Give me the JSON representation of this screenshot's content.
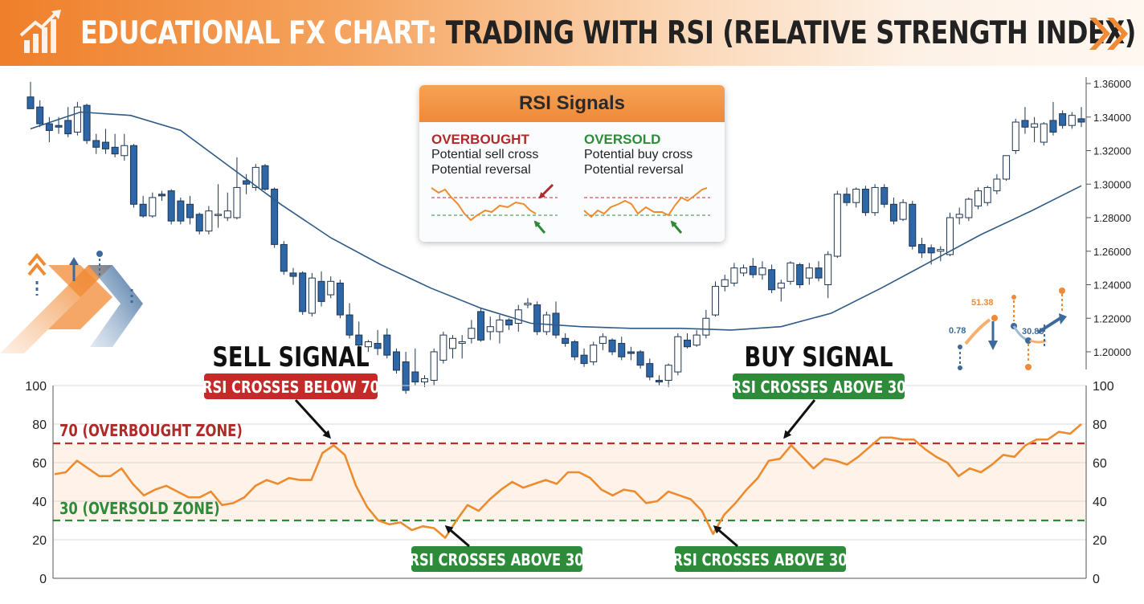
{
  "header": {
    "title_prefix": "EDUCATIONAL FX CHART:",
    "title_main": "TRADING WITH RSI (RELATIVE STRENGTH INDEX)"
  },
  "colors": {
    "up_candle": "#ffffff",
    "down_candle": "#2e67a8",
    "moving_average": "#2e5a86",
    "rsi_line": "#ec8c2e",
    "overbought": "#c42a2a",
    "oversold": "#2e8b3a",
    "accent": "#f08a34"
  },
  "signals_box": {
    "title": "RSI Signals",
    "overbought": {
      "heading": "OVERBOUGHT",
      "line1": "Potential sell cross",
      "line2": "Potential reversal"
    },
    "oversold": {
      "heading": "OVERSOLD",
      "line1": "Potential buy cross",
      "line2": "Potential reversal"
    }
  },
  "decor_numbers": [
    "0.78",
    "51.38",
    "30.85"
  ],
  "chart_data": [
    {
      "type": "candlestick",
      "title": "",
      "ylim": [
        1.19,
        1.365
      ],
      "y_ticks": [
        "1.36000",
        "1.34000",
        "1.32000",
        "1.30000",
        "1.28000",
        "1.26000",
        "1.24000",
        "1.22000",
        "1.20000"
      ],
      "candles": [
        {
          "o": 1.352,
          "h": 1.361,
          "l": 1.345,
          "c": 1.345
        },
        {
          "o": 1.346,
          "h": 1.35,
          "l": 1.334,
          "c": 1.336
        },
        {
          "o": 1.336,
          "h": 1.34,
          "l": 1.325,
          "c": 1.332
        },
        {
          "o": 1.335,
          "h": 1.34,
          "l": 1.33,
          "c": 1.334
        },
        {
          "o": 1.338,
          "h": 1.346,
          "l": 1.328,
          "c": 1.33
        },
        {
          "o": 1.331,
          "h": 1.349,
          "l": 1.329,
          "c": 1.346
        },
        {
          "o": 1.347,
          "h": 1.348,
          "l": 1.324,
          "c": 1.326
        },
        {
          "o": 1.326,
          "h": 1.33,
          "l": 1.318,
          "c": 1.322
        },
        {
          "o": 1.325,
          "h": 1.333,
          "l": 1.318,
          "c": 1.321
        },
        {
          "o": 1.322,
          "h": 1.33,
          "l": 1.316,
          "c": 1.318
        },
        {
          "o": 1.317,
          "h": 1.33,
          "l": 1.314,
          "c": 1.323
        },
        {
          "o": 1.323,
          "h": 1.324,
          "l": 1.286,
          "c": 1.288
        },
        {
          "o": 1.288,
          "h": 1.293,
          "l": 1.28,
          "c": 1.281
        },
        {
          "o": 1.281,
          "h": 1.295,
          "l": 1.28,
          "c": 1.292
        },
        {
          "o": 1.294,
          "h": 1.296,
          "l": 1.29,
          "c": 1.293
        },
        {
          "o": 1.296,
          "h": 1.297,
          "l": 1.276,
          "c": 1.278
        },
        {
          "o": 1.29,
          "h": 1.292,
          "l": 1.276,
          "c": 1.278
        },
        {
          "o": 1.288,
          "h": 1.293,
          "l": 1.276,
          "c": 1.28
        },
        {
          "o": 1.282,
          "h": 1.283,
          "l": 1.27,
          "c": 1.272
        },
        {
          "o": 1.272,
          "h": 1.287,
          "l": 1.27,
          "c": 1.284
        },
        {
          "o": 1.282,
          "h": 1.3,
          "l": 1.274,
          "c": 1.282
        },
        {
          "o": 1.28,
          "h": 1.295,
          "l": 1.278,
          "c": 1.284
        },
        {
          "o": 1.28,
          "h": 1.316,
          "l": 1.279,
          "c": 1.298
        },
        {
          "o": 1.302,
          "h": 1.306,
          "l": 1.294,
          "c": 1.3
        },
        {
          "o": 1.298,
          "h": 1.312,
          "l": 1.296,
          "c": 1.31
        },
        {
          "o": 1.311,
          "h": 1.312,
          "l": 1.296,
          "c": 1.297
        },
        {
          "o": 1.297,
          "h": 1.298,
          "l": 1.262,
          "c": 1.264
        },
        {
          "o": 1.264,
          "h": 1.266,
          "l": 1.246,
          "c": 1.248
        },
        {
          "o": 1.247,
          "h": 1.25,
          "l": 1.24,
          "c": 1.245
        },
        {
          "o": 1.247,
          "h": 1.248,
          "l": 1.222,
          "c": 1.224
        },
        {
          "o": 1.223,
          "h": 1.247,
          "l": 1.221,
          "c": 1.244
        },
        {
          "o": 1.242,
          "h": 1.248,
          "l": 1.227,
          "c": 1.23
        },
        {
          "o": 1.234,
          "h": 1.245,
          "l": 1.232,
          "c": 1.242
        },
        {
          "o": 1.241,
          "h": 1.243,
          "l": 1.22,
          "c": 1.222
        },
        {
          "o": 1.222,
          "h": 1.229,
          "l": 1.208,
          "c": 1.21
        },
        {
          "o": 1.21,
          "h": 1.218,
          "l": 1.202,
          "c": 1.204
        },
        {
          "o": 1.203,
          "h": 1.207,
          "l": 1.2,
          "c": 1.206
        },
        {
          "o": 1.205,
          "h": 1.213,
          "l": 1.198,
          "c": 1.202
        },
        {
          "o": 1.21,
          "h": 1.214,
          "l": 1.196,
          "c": 1.198
        },
        {
          "o": 1.2,
          "h": 1.202,
          "l": 1.187,
          "c": 1.189
        },
        {
          "o": 1.194,
          "h": 1.2,
          "l": 1.175,
          "c": 1.177
        },
        {
          "o": 1.188,
          "h": 1.202,
          "l": 1.18,
          "c": 1.182
        },
        {
          "o": 1.182,
          "h": 1.186,
          "l": 1.179,
          "c": 1.184
        },
        {
          "o": 1.183,
          "h": 1.202,
          "l": 1.18,
          "c": 1.2
        },
        {
          "o": 1.195,
          "h": 1.212,
          "l": 1.193,
          "c": 1.21
        },
        {
          "o": 1.202,
          "h": 1.21,
          "l": 1.196,
          "c": 1.208
        },
        {
          "o": 1.205,
          "h": 1.21,
          "l": 1.196,
          "c": 1.206
        },
        {
          "o": 1.208,
          "h": 1.219,
          "l": 1.205,
          "c": 1.214
        },
        {
          "o": 1.224,
          "h": 1.226,
          "l": 1.206,
          "c": 1.207
        },
        {
          "o": 1.212,
          "h": 1.221,
          "l": 1.207,
          "c": 1.215
        },
        {
          "o": 1.212,
          "h": 1.222,
          "l": 1.205,
          "c": 1.219
        },
        {
          "o": 1.219,
          "h": 1.22,
          "l": 1.213,
          "c": 1.216
        },
        {
          "o": 1.217,
          "h": 1.228,
          "l": 1.212,
          "c": 1.225
        },
        {
          "o": 1.228,
          "h": 1.232,
          "l": 1.226,
          "c": 1.229
        },
        {
          "o": 1.228,
          "h": 1.23,
          "l": 1.21,
          "c": 1.212
        },
        {
          "o": 1.212,
          "h": 1.224,
          "l": 1.21,
          "c": 1.222
        },
        {
          "o": 1.223,
          "h": 1.23,
          "l": 1.208,
          "c": 1.21
        },
        {
          "o": 1.208,
          "h": 1.211,
          "l": 1.203,
          "c": 1.205
        },
        {
          "o": 1.206,
          "h": 1.207,
          "l": 1.195,
          "c": 1.197
        },
        {
          "o": 1.198,
          "h": 1.202,
          "l": 1.191,
          "c": 1.193
        },
        {
          "o": 1.194,
          "h": 1.206,
          "l": 1.192,
          "c": 1.204
        },
        {
          "o": 1.205,
          "h": 1.211,
          "l": 1.201,
          "c": 1.209
        },
        {
          "o": 1.207,
          "h": 1.208,
          "l": 1.198,
          "c": 1.2
        },
        {
          "o": 1.205,
          "h": 1.209,
          "l": 1.195,
          "c": 1.197
        },
        {
          "o": 1.2,
          "h": 1.203,
          "l": 1.195,
          "c": 1.199
        },
        {
          "o": 1.2,
          "h": 1.201,
          "l": 1.19,
          "c": 1.192
        },
        {
          "o": 1.193,
          "h": 1.196,
          "l": 1.183,
          "c": 1.185
        },
        {
          "o": 1.183,
          "h": 1.186,
          "l": 1.18,
          "c": 1.182
        },
        {
          "o": 1.183,
          "h": 1.193,
          "l": 1.179,
          "c": 1.192
        },
        {
          "o": 1.188,
          "h": 1.211,
          "l": 1.186,
          "c": 1.209
        },
        {
          "o": 1.207,
          "h": 1.211,
          "l": 1.202,
          "c": 1.203
        },
        {
          "o": 1.204,
          "h": 1.213,
          "l": 1.203,
          "c": 1.21
        },
        {
          "o": 1.21,
          "h": 1.225,
          "l": 1.208,
          "c": 1.22
        },
        {
          "o": 1.222,
          "h": 1.242,
          "l": 1.221,
          "c": 1.239
        },
        {
          "o": 1.239,
          "h": 1.246,
          "l": 1.236,
          "c": 1.243
        },
        {
          "o": 1.241,
          "h": 1.253,
          "l": 1.239,
          "c": 1.25
        },
        {
          "o": 1.247,
          "h": 1.252,
          "l": 1.245,
          "c": 1.25
        },
        {
          "o": 1.251,
          "h": 1.256,
          "l": 1.244,
          "c": 1.246
        },
        {
          "o": 1.246,
          "h": 1.254,
          "l": 1.243,
          "c": 1.25
        },
        {
          "o": 1.249,
          "h": 1.252,
          "l": 1.235,
          "c": 1.237
        },
        {
          "o": 1.238,
          "h": 1.243,
          "l": 1.23,
          "c": 1.241
        },
        {
          "o": 1.242,
          "h": 1.254,
          "l": 1.24,
          "c": 1.253
        },
        {
          "o": 1.252,
          "h": 1.253,
          "l": 1.238,
          "c": 1.24
        },
        {
          "o": 1.244,
          "h": 1.253,
          "l": 1.24,
          "c": 1.25
        },
        {
          "o": 1.25,
          "h": 1.254,
          "l": 1.242,
          "c": 1.244
        },
        {
          "o": 1.24,
          "h": 1.26,
          "l": 1.232,
          "c": 1.258
        },
        {
          "o": 1.257,
          "h": 1.296,
          "l": 1.256,
          "c": 1.294
        },
        {
          "o": 1.294,
          "h": 1.298,
          "l": 1.287,
          "c": 1.289
        },
        {
          "o": 1.289,
          "h": 1.298,
          "l": 1.286,
          "c": 1.297
        },
        {
          "o": 1.297,
          "h": 1.299,
          "l": 1.281,
          "c": 1.283
        },
        {
          "o": 1.283,
          "h": 1.3,
          "l": 1.281,
          "c": 1.298
        },
        {
          "o": 1.298,
          "h": 1.3,
          "l": 1.286,
          "c": 1.288
        },
        {
          "o": 1.288,
          "h": 1.292,
          "l": 1.276,
          "c": 1.278
        },
        {
          "o": 1.279,
          "h": 1.291,
          "l": 1.278,
          "c": 1.289
        },
        {
          "o": 1.288,
          "h": 1.29,
          "l": 1.261,
          "c": 1.263
        },
        {
          "o": 1.264,
          "h": 1.268,
          "l": 1.256,
          "c": 1.259
        },
        {
          "o": 1.262,
          "h": 1.264,
          "l": 1.252,
          "c": 1.259
        },
        {
          "o": 1.26,
          "h": 1.263,
          "l": 1.254,
          "c": 1.261
        },
        {
          "o": 1.258,
          "h": 1.283,
          "l": 1.257,
          "c": 1.28
        },
        {
          "o": 1.28,
          "h": 1.286,
          "l": 1.276,
          "c": 1.282
        },
        {
          "o": 1.28,
          "h": 1.292,
          "l": 1.278,
          "c": 1.291
        },
        {
          "o": 1.287,
          "h": 1.298,
          "l": 1.285,
          "c": 1.296
        },
        {
          "o": 1.289,
          "h": 1.299,
          "l": 1.287,
          "c": 1.298
        },
        {
          "o": 1.296,
          "h": 1.306,
          "l": 1.294,
          "c": 1.303
        },
        {
          "o": 1.303,
          "h": 1.317,
          "l": 1.302,
          "c": 1.317
        },
        {
          "o": 1.32,
          "h": 1.339,
          "l": 1.318,
          "c": 1.337
        },
        {
          "o": 1.338,
          "h": 1.346,
          "l": 1.33,
          "c": 1.334
        },
        {
          "o": 1.334,
          "h": 1.34,
          "l": 1.325,
          "c": 1.336
        },
        {
          "o": 1.325,
          "h": 1.337,
          "l": 1.323,
          "c": 1.336
        },
        {
          "o": 1.338,
          "h": 1.349,
          "l": 1.329,
          "c": 1.331
        },
        {
          "o": 1.342,
          "h": 1.344,
          "l": 1.333,
          "c": 1.335
        },
        {
          "o": 1.335,
          "h": 1.343,
          "l": 1.333,
          "c": 1.341
        },
        {
          "o": 1.339,
          "h": 1.346,
          "l": 1.334,
          "c": 1.337
        }
      ],
      "moving_average": [
        1.333,
        1.343,
        1.341,
        1.332,
        1.31,
        1.288,
        1.268,
        1.252,
        1.238,
        1.226,
        1.217,
        1.215,
        1.214,
        1.214,
        1.213,
        1.215,
        1.223,
        1.238,
        1.254,
        1.27,
        1.284,
        1.299
      ]
    },
    {
      "type": "line",
      "title": "",
      "ylim": [
        0,
        100
      ],
      "y_ticks": [
        "0",
        "20",
        "40",
        "60",
        "80",
        "100"
      ],
      "series": [
        {
          "name": "",
          "values": [
            54,
            55,
            61,
            57,
            53,
            53,
            57,
            49,
            43,
            46,
            48,
            45,
            42,
            42,
            45,
            38,
            39,
            42,
            48,
            51,
            49,
            52,
            51,
            51,
            65,
            69,
            64,
            48,
            37,
            30,
            28,
            29,
            25,
            27,
            26,
            21,
            30,
            38,
            35,
            41,
            46,
            50,
            47,
            49,
            51,
            49,
            55,
            55,
            52,
            46,
            43,
            46,
            45,
            39,
            40,
            45,
            43,
            41,
            35,
            23,
            33,
            39,
            46,
            52,
            61,
            62,
            69,
            63,
            57,
            62,
            61,
            59,
            63,
            68,
            73,
            73,
            72,
            72,
            67,
            63,
            60,
            53,
            57,
            55,
            59,
            64,
            63,
            69,
            72,
            72,
            76,
            75,
            80
          ]
        }
      ],
      "thresholds": [
        {
          "value": 70,
          "label": "70 (OVERBOUGHT ZONE)"
        },
        {
          "value": 30,
          "label": "30 (OVERSOLD ZONE)"
        }
      ],
      "headings": [
        "SELL SIGNAL",
        "BUY SIGNAL"
      ],
      "callouts": [
        {
          "text": "RSI CROSSES BELOW 70",
          "color": "red"
        },
        {
          "text": "RSI CROSSES ABOVE 30",
          "color": "green"
        },
        {
          "text": "RSI CROSSES ABOVE 30",
          "color": "green"
        },
        {
          "text": "RSI CROSSES ABOVE 30",
          "color": "green"
        }
      ]
    }
  ]
}
